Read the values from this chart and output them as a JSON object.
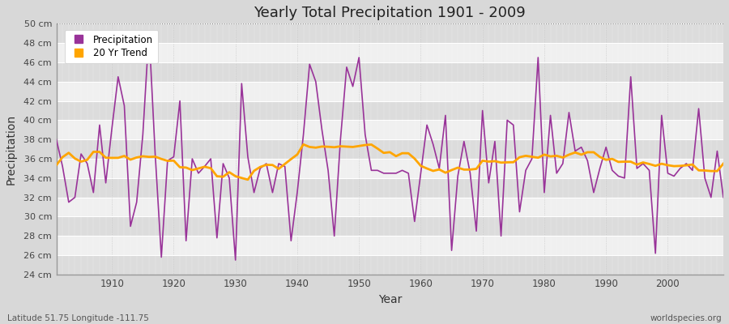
{
  "title": "Yearly Total Precipitation 1901 - 2009",
  "xlabel": "Year",
  "ylabel": "Precipitation",
  "subtitle_left": "Latitude 51.75 Longitude -111.75",
  "subtitle_right": "worldspecies.org",
  "legend_labels": [
    "Precipitation",
    "20 Yr Trend"
  ],
  "precip_color": "#993399",
  "trend_color": "#FFA500",
  "bg_light": "#F0F0F0",
  "bg_dark": "#DCDCDC",
  "fig_color": "#D8D8D8",
  "ylim": [
    24,
    50
  ],
  "xlim": [
    1901,
    2009
  ],
  "yticks": [
    24,
    26,
    28,
    30,
    32,
    34,
    36,
    38,
    40,
    42,
    44,
    46,
    48,
    50
  ],
  "ytick_labels": [
    "24 cm",
    "26 cm",
    "28 cm",
    "30 cm",
    "32 cm",
    "34 cm",
    "36 cm",
    "38 cm",
    "40 cm",
    "42 cm",
    "44 cm",
    "46 cm",
    "48 cm",
    "50 cm"
  ],
  "years": [
    1901,
    1902,
    1903,
    1904,
    1905,
    1906,
    1907,
    1908,
    1909,
    1910,
    1911,
    1912,
    1913,
    1914,
    1915,
    1916,
    1917,
    1918,
    1919,
    1920,
    1921,
    1922,
    1923,
    1924,
    1925,
    1926,
    1927,
    1928,
    1929,
    1930,
    1931,
    1932,
    1933,
    1934,
    1935,
    1936,
    1937,
    1938,
    1939,
    1940,
    1941,
    1942,
    1943,
    1944,
    1945,
    1946,
    1947,
    1948,
    1949,
    1950,
    1951,
    1952,
    1953,
    1954,
    1955,
    1956,
    1957,
    1958,
    1959,
    1960,
    1961,
    1962,
    1963,
    1964,
    1965,
    1966,
    1967,
    1968,
    1969,
    1970,
    1971,
    1972,
    1973,
    1974,
    1975,
    1976,
    1977,
    1978,
    1979,
    1980,
    1981,
    1982,
    1983,
    1984,
    1985,
    1986,
    1987,
    1988,
    1989,
    1990,
    1991,
    1992,
    1993,
    1994,
    1995,
    1996,
    1997,
    1998,
    1999,
    2000,
    2001,
    2002,
    2003,
    2004,
    2005,
    2006,
    2007,
    2008,
    2009
  ],
  "precip": [
    38.0,
    35.2,
    31.5,
    32.0,
    36.5,
    35.5,
    32.5,
    39.5,
    33.5,
    39.2,
    44.5,
    41.5,
    29.0,
    31.5,
    38.5,
    49.2,
    36.5,
    25.8,
    35.8,
    36.2,
    42.0,
    27.5,
    36.0,
    34.5,
    35.2,
    36.0,
    27.8,
    35.5,
    34.0,
    25.5,
    43.8,
    36.2,
    32.5,
    35.0,
    35.5,
    32.5,
    35.5,
    35.2,
    27.5,
    32.5,
    38.5,
    45.8,
    44.0,
    39.0,
    34.8,
    28.0,
    38.0,
    45.5,
    43.5,
    46.5,
    38.5,
    34.8,
    34.8,
    34.5,
    34.5,
    34.5,
    34.8,
    34.5,
    29.5,
    34.5,
    39.5,
    37.5,
    35.0,
    40.5,
    26.5,
    34.2,
    37.8,
    34.5,
    28.5,
    41.0,
    33.5,
    37.8,
    28.0,
    40.0,
    39.5,
    30.5,
    34.8,
    36.0,
    46.5,
    32.5,
    40.5,
    34.5,
    35.5,
    40.8,
    36.8,
    37.2,
    35.8,
    32.5,
    35.0,
    37.2,
    34.8,
    34.2,
    34.0,
    44.5,
    35.0,
    35.5,
    34.8,
    26.2,
    40.5,
    34.5,
    34.2,
    35.0,
    35.5,
    34.8,
    41.2,
    34.0,
    32.0,
    36.8,
    32.0
  ]
}
